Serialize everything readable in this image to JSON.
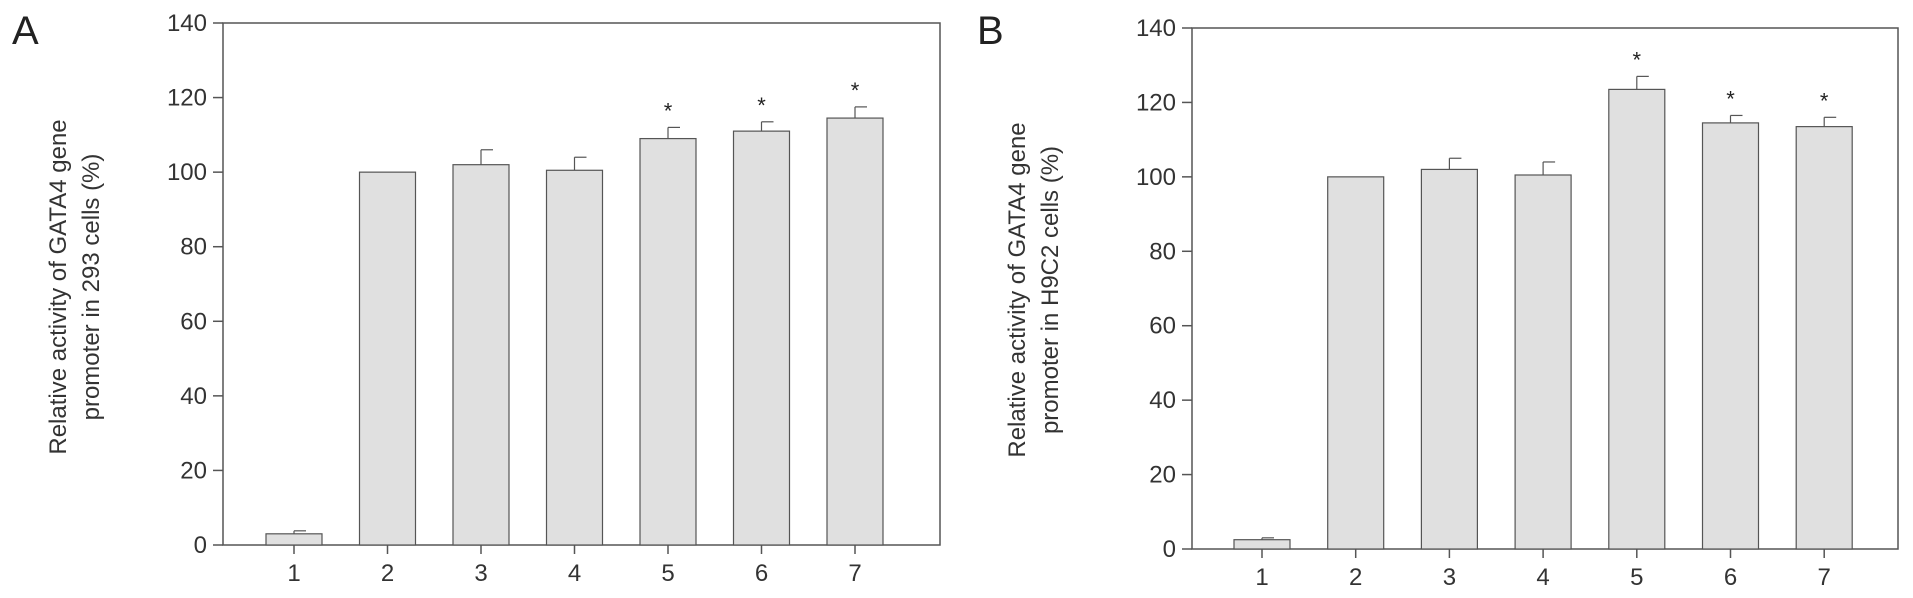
{
  "chart_data": [
    {
      "type": "bar",
      "panel": "A",
      "ylabel_lines": [
        "Relative activity of GATA4 gene",
        "promoter in 293 cells (%)"
      ],
      "categories": [
        "1",
        "2",
        "3",
        "4",
        "5",
        "6",
        "7"
      ],
      "values": [
        3,
        100,
        102,
        100.5,
        109,
        111,
        114.5
      ],
      "errors": [
        0.8,
        0,
        4,
        3.5,
        3,
        2.5,
        3
      ],
      "significance": [
        "",
        "",
        "",
        "",
        "*",
        "*",
        "*"
      ],
      "ylim": [
        0,
        140
      ],
      "yticks": [
        "0",
        "20",
        "40",
        "60",
        "80",
        "100",
        "120",
        "140"
      ],
      "grid": false,
      "bar_color": "#e0e0e0"
    },
    {
      "type": "bar",
      "panel": "B",
      "ylabel_lines": [
        "Relative activity of GATA4 gene",
        "promoter in H9C2 cells (%)"
      ],
      "categories": [
        "1",
        "2",
        "3",
        "4",
        "5",
        "6",
        "7"
      ],
      "values": [
        2.5,
        100,
        102,
        100.5,
        123.5,
        114.5,
        113.5
      ],
      "errors": [
        0.5,
        0,
        3,
        3.5,
        3.5,
        2,
        2.5
      ],
      "significance": [
        "",
        "",
        "",
        "",
        "*",
        "*",
        "*"
      ],
      "ylim": [
        0,
        140
      ],
      "yticks": [
        "0",
        "20",
        "40",
        "60",
        "80",
        "100",
        "120",
        "140"
      ],
      "grid": false,
      "bar_color": "#e0e0e0"
    }
  ]
}
